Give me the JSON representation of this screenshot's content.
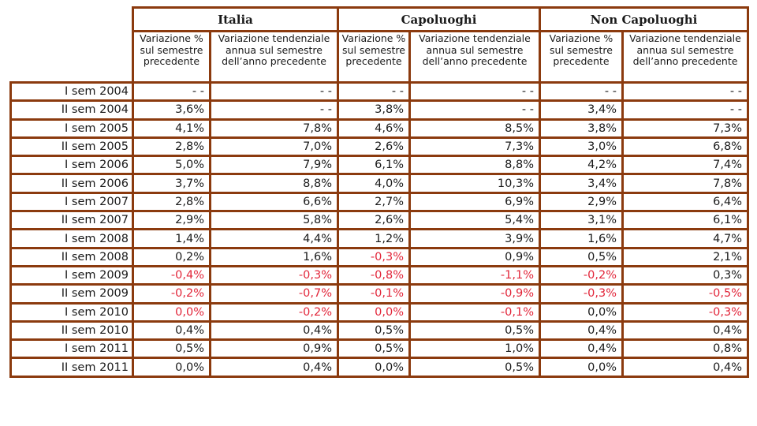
{
  "table": {
    "groups": [
      "Italia",
      "Capoluoghi",
      "Non Capoluoghi"
    ],
    "subheaders": {
      "var_sem": "Variazione % sul semestre precedente",
      "var_tend": "Variazione tendenziale annua sul semestre dell’anno precedente"
    },
    "colors": {
      "border": "#8b3a0e",
      "negative": "#e2263a",
      "text": "#1a1a1a"
    },
    "rows": [
      {
        "label": "I sem 2004",
        "cells": [
          "- -",
          "- -",
          "- -",
          "- -",
          "- -",
          "- -"
        ]
      },
      {
        "label": "II sem 2004",
        "cells": [
          "3,6%",
          "- -",
          "3,8%",
          "- -",
          "3,4%",
          "- -"
        ]
      },
      {
        "label": "I sem 2005",
        "cells": [
          "4,1%",
          "7,8%",
          "4,6%",
          "8,5%",
          "3,8%",
          "7,3%"
        ]
      },
      {
        "label": "II sem 2005",
        "cells": [
          "2,8%",
          "7,0%",
          "2,6%",
          "7,3%",
          "3,0%",
          "6,8%"
        ]
      },
      {
        "label": "I sem 2006",
        "cells": [
          "5,0%",
          "7,9%",
          "6,1%",
          "8,8%",
          "4,2%",
          "7,4%"
        ]
      },
      {
        "label": "II sem 2006",
        "cells": [
          "3,7%",
          "8,8%",
          "4,0%",
          "10,3%",
          "3,4%",
          "7,8%"
        ]
      },
      {
        "label": "I sem 2007",
        "cells": [
          "2,8%",
          "6,6%",
          "2,7%",
          "6,9%",
          "2,9%",
          "6,4%"
        ]
      },
      {
        "label": "II sem 2007",
        "cells": [
          "2,9%",
          "5,8%",
          "2,6%",
          "5,4%",
          "3,1%",
          "6,1%"
        ]
      },
      {
        "label": "I sem 2008",
        "cells": [
          "1,4%",
          "4,4%",
          "1,2%",
          "3,9%",
          "1,6%",
          "4,7%"
        ]
      },
      {
        "label": "II sem 2008",
        "cells": [
          "0,2%",
          "1,6%",
          "-0,3%",
          "0,9%",
          "0,5%",
          "2,1%"
        ]
      },
      {
        "label": "I sem 2009",
        "cells": [
          "-0,4%",
          "-0,3%",
          "-0,8%",
          "-1,1%",
          "-0,2%",
          "0,3%"
        ]
      },
      {
        "label": "II sem 2009",
        "cells": [
          "-0,2%",
          "-0,7%",
          "-0,1%",
          "-0,9%",
          "-0,3%",
          "-0,5%"
        ]
      },
      {
        "label": "I sem 2010",
        "cells": [
          "0,0%",
          "-0,2%",
          "0,0%",
          "-0,1%",
          "0,0%",
          "-0,3%"
        ]
      },
      {
        "label": "II sem 2010",
        "cells": [
          "0,4%",
          "0,4%",
          "0,5%",
          "0,5%",
          "0,4%",
          "0,4%"
        ]
      },
      {
        "label": "I sem 2011",
        "cells": [
          "0,5%",
          "0,9%",
          "0,5%",
          "1,0%",
          "0,4%",
          "0,8%"
        ]
      },
      {
        "label": "II sem 2011",
        "cells": [
          "0,0%",
          "0,4%",
          "0,0%",
          "0,5%",
          "0,0%",
          "0,4%"
        ]
      }
    ],
    "red_cells": [
      [
        9,
        2
      ],
      [
        10,
        0
      ],
      [
        10,
        1
      ],
      [
        10,
        2
      ],
      [
        10,
        3
      ],
      [
        10,
        4
      ],
      [
        11,
        0
      ],
      [
        11,
        1
      ],
      [
        11,
        2
      ],
      [
        11,
        3
      ],
      [
        11,
        4
      ],
      [
        11,
        5
      ],
      [
        12,
        0
      ],
      [
        12,
        1
      ],
      [
        12,
        2
      ],
      [
        12,
        3
      ],
      [
        12,
        5
      ]
    ]
  }
}
